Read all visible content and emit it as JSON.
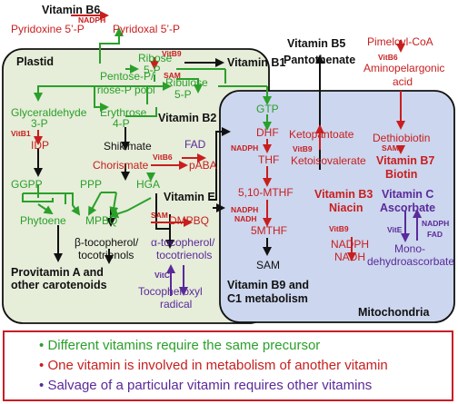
{
  "colors": {
    "green": "#2aa02a",
    "red": "#c81e1e",
    "purple": "#5a2a9a",
    "black": "#111111",
    "plastid_fill": "#e6edd9",
    "mito_fill": "#ccd6ee",
    "legend_border": "#c81e28"
  },
  "labels": {
    "vitamin_b6": "Vitamin  B6",
    "nadph_top": "NADPH",
    "pyridoxine": "Pyridoxine 5’-P",
    "pyridoxal": "Pyridoxal 5’-P",
    "plastid": "Plastid",
    "ribose": "Ribose",
    "ribose_5p": "5-P",
    "vitb9_sam_a": "VitB9",
    "vitb9_sam_b": "SAM",
    "vitamin_b1": "Vitamin B1",
    "pentose": "Pentose-P/",
    "triose": "Triose-P pool",
    "ribulose": "Ribulose",
    "ribulose_5p": "5-P",
    "glyceraldehyde": "Glyceraldehyde",
    "glyceraldehyde_3p": "3-P",
    "erythrose": "Erythrose",
    "erythrose_4p": "4-P",
    "vitb1": "VitB1",
    "idp": "IDP",
    "shikimate": "Shikimate",
    "vitamin_b2": "Vitamin B2",
    "fad": "FAD",
    "chorismate": "Chorismate",
    "vitb6_paba": "VitB6",
    "paba": "pABA",
    "ggpp": "GGPP",
    "ppp": "PPP",
    "hga": "HGA",
    "vitamin_e": "Vitamin  E",
    "phytoene": "Phytoene",
    "mpbq": "MPBQ",
    "sam_dmpbq": "SAM",
    "dmpbq": "DMPBQ",
    "beta_toco_1": "β-tocopherol/",
    "beta_toco_2": "tocotrienols",
    "alpha_toco_1": "α-tocopherol/",
    "alpha_toco_2": "tocotrienols",
    "vitc_small": "VitC",
    "tocopheroxyl_1": "Tocopheroxyl",
    "tocopheroxyl_2": "radical",
    "provitamin_1": "Provitamin A and",
    "provitamin_2": "other carotenoids",
    "gtp": "GTP",
    "vitamin_b5_1": "Vitamin B5",
    "vitamin_b5_2": "Pantothenate",
    "pimeloyl": "Pimeloyl-CoA",
    "vitb6_amino": "VitB6",
    "aminopelargonic_1": "Aminopelargonic",
    "aminopelargonic_2": "acid",
    "dhf": "DHF",
    "nadph_thf": "NADPH",
    "thf": "THF",
    "ketopantoate": "Ketopantoate",
    "vitb9_keto": "VitB9",
    "ketoisovalerate": "Ketoisovalerate",
    "dethiobiotin": "Dethiobiotin",
    "sam_biotin": "SAM",
    "vitamin_b7_1": "Vitamin B7",
    "vitamin_b7_2": "Biotin",
    "mthf": "5,10-MTHF",
    "nadph_mthf": "NADPH",
    "nadh_mthf": "NADH",
    "five_mthf": "5MTHF",
    "vitamin_b3_1": "Vitamin B3",
    "vitamin_b3_2": "Niacin",
    "vitb9_nadph": "VitB9",
    "nadph": "NADPH",
    "nadh": "NADH",
    "vitamin_c_1": "Vitamin C",
    "vitamin_c_2": "Ascorbate",
    "vite": "VitE",
    "nadph_asc": "NADPH",
    "fad_asc": "FAD",
    "mono_1": "Mono-",
    "mono_2": "dehydroascorbate",
    "sam": "SAM",
    "vitamin_b9_1": "Vitamin  B9 and",
    "vitamin_b9_2": "C1 metabolism",
    "mitochondria": "Mitochondria"
  },
  "legend": [
    {
      "bullet": "•",
      "text": "Different vitamins require the same precursor"
    },
    {
      "bullet": "•",
      "text": "One vitamin is involved in metabolism of another vitamin"
    },
    {
      "bullet": "•",
      "text": "Salvage of a particular vitamin requires other vitamins"
    }
  ]
}
